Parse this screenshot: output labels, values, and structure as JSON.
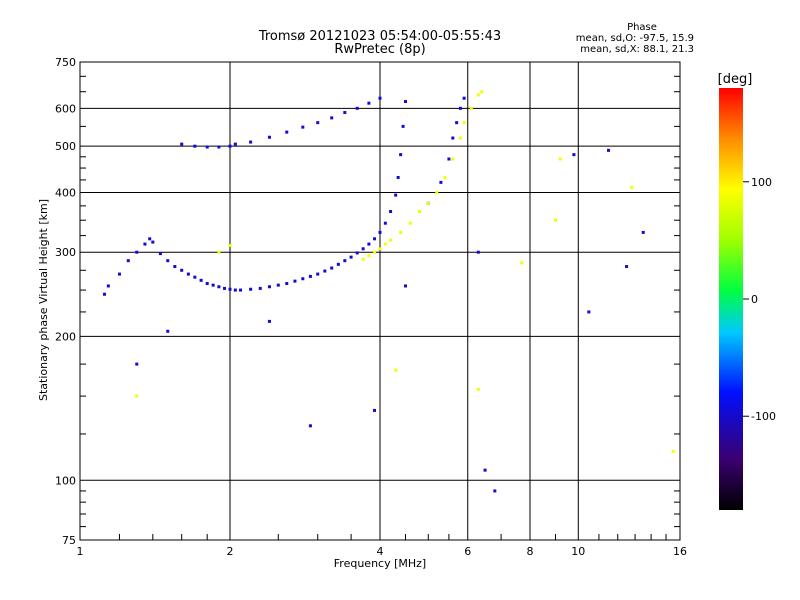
{
  "chart_data": {
    "type": "scatter",
    "title": "Tromsø 20121023 05:54:00-05:55:43",
    "subtitle": "RwPretec (8p)",
    "xlabel": "Frequency [MHz]",
    "ylabel": "Stationary phase Virtual Height [km]",
    "x_scale": "log",
    "y_scale": "log",
    "xlim": [
      1,
      16
    ],
    "ylim": [
      75,
      750
    ],
    "grid": true,
    "x_ticks": [
      "1",
      "2",
      "4",
      "6",
      "8",
      "10",
      "16"
    ],
    "y_ticks": [
      "75",
      "100",
      "200",
      "300",
      "400",
      "500",
      "600",
      "750"
    ],
    "phase_header": "Phase",
    "phase_stats": [
      "mean, sd,O:  -97.5, 15.9",
      "mean, sd,X:   88.1, 21.3"
    ],
    "colorbar": {
      "label": "[deg]",
      "ticks": [
        "100",
        "0",
        "-100"
      ],
      "range": [
        -180,
        180
      ]
    },
    "traces": [
      {
        "name": "",
        "phase": -97.5,
        "points": [
          [
            1.12,
            245
          ],
          [
            1.14,
            255
          ],
          [
            1.2,
            270
          ],
          [
            1.25,
            288
          ],
          [
            1.3,
            300
          ],
          [
            1.35,
            312
          ],
          [
            1.38,
            320
          ],
          [
            1.4,
            315
          ],
          [
            1.45,
            298
          ],
          [
            1.5,
            288
          ],
          [
            1.55,
            280
          ],
          [
            1.6,
            275
          ],
          [
            1.65,
            270
          ],
          [
            1.7,
            266
          ],
          [
            1.75,
            262
          ],
          [
            1.8,
            258
          ],
          [
            1.85,
            256
          ],
          [
            1.9,
            254
          ],
          [
            1.95,
            252
          ],
          [
            2.0,
            251
          ],
          [
            2.05,
            250
          ],
          [
            2.1,
            250
          ],
          [
            2.2,
            251
          ],
          [
            2.3,
            252
          ],
          [
            2.4,
            254
          ],
          [
            2.5,
            256
          ],
          [
            2.6,
            258
          ],
          [
            2.7,
            261
          ],
          [
            2.8,
            264
          ],
          [
            2.9,
            267
          ],
          [
            3.0,
            270
          ],
          [
            3.1,
            274
          ],
          [
            3.2,
            278
          ],
          [
            3.3,
            283
          ],
          [
            3.4,
            288
          ],
          [
            3.5,
            293
          ],
          [
            3.6,
            299
          ],
          [
            3.7,
            305
          ],
          [
            3.8,
            312
          ],
          [
            3.9,
            320
          ],
          [
            4.0,
            330
          ],
          [
            4.1,
            345
          ],
          [
            4.2,
            365
          ],
          [
            4.3,
            395
          ],
          [
            4.35,
            430
          ],
          [
            4.4,
            480
          ],
          [
            4.45,
            550
          ],
          [
            4.5,
            620
          ],
          [
            1.6,
            505
          ],
          [
            1.7,
            500
          ],
          [
            1.8,
            498
          ],
          [
            1.9,
            498
          ],
          [
            2.0,
            500
          ],
          [
            2.05,
            505
          ],
          [
            2.2,
            510
          ],
          [
            2.4,
            522
          ],
          [
            2.6,
            535
          ],
          [
            2.8,
            548
          ],
          [
            3.0,
            560
          ],
          [
            3.2,
            573
          ],
          [
            3.4,
            588
          ],
          [
            3.6,
            600
          ],
          [
            3.8,
            615
          ],
          [
            4.0,
            630
          ],
          [
            1.3,
            175
          ],
          [
            1.5,
            205
          ],
          [
            2.4,
            215
          ],
          [
            2.9,
            130
          ],
          [
            3.9,
            140
          ],
          [
            4.5,
            255
          ],
          [
            5.0,
            380
          ],
          [
            5.3,
            420
          ],
          [
            5.5,
            470
          ],
          [
            5.6,
            520
          ],
          [
            5.7,
            560
          ],
          [
            5.8,
            600
          ],
          [
            5.9,
            630
          ],
          [
            6.3,
            300
          ],
          [
            6.5,
            105
          ],
          [
            6.8,
            95
          ],
          [
            10.5,
            225
          ],
          [
            11.5,
            490
          ],
          [
            12.5,
            280
          ],
          [
            13.5,
            330
          ],
          [
            9.8,
            480
          ]
        ]
      },
      {
        "name": "",
        "phase": 88.1,
        "points": [
          [
            1.9,
            300
          ],
          [
            2.0,
            310
          ],
          [
            3.7,
            290
          ],
          [
            3.8,
            295
          ],
          [
            3.9,
            300
          ],
          [
            4.0,
            305
          ],
          [
            4.1,
            312
          ],
          [
            4.2,
            318
          ],
          [
            4.4,
            330
          ],
          [
            4.6,
            345
          ],
          [
            4.8,
            365
          ],
          [
            5.0,
            380
          ],
          [
            5.2,
            400
          ],
          [
            5.4,
            430
          ],
          [
            5.6,
            470
          ],
          [
            5.8,
            520
          ],
          [
            5.9,
            560
          ],
          [
            6.1,
            600
          ],
          [
            6.3,
            640
          ],
          [
            6.4,
            650
          ],
          [
            1.3,
            150
          ],
          [
            4.3,
            170
          ],
          [
            6.3,
            155
          ],
          [
            7.7,
            285
          ],
          [
            9.0,
            350
          ],
          [
            12.8,
            410
          ],
          [
            15.5,
            115
          ],
          [
            9.2,
            470
          ]
        ]
      }
    ]
  }
}
